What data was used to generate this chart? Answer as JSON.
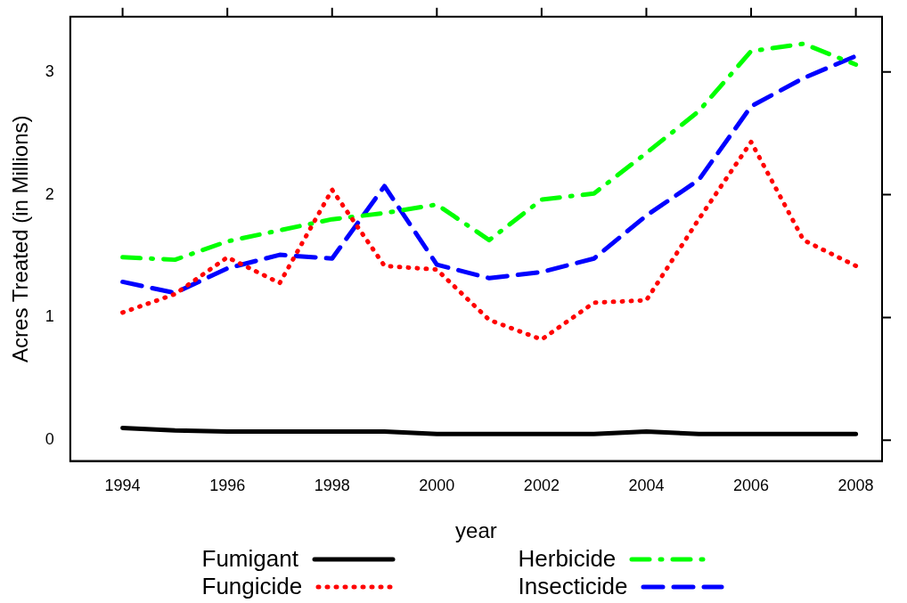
{
  "chart_data": {
    "type": "line",
    "xlabel": "year",
    "ylabel": "Acres Treated (in Millions)",
    "x": [
      1994,
      1995,
      1996,
      1997,
      1998,
      1999,
      2000,
      2001,
      2002,
      2003,
      2004,
      2005,
      2006,
      2007,
      2008
    ],
    "xlim": [
      1993,
      2008.5
    ],
    "xticks": [
      1994,
      1996,
      1998,
      2000,
      2002,
      2004,
      2006,
      2008
    ],
    "ylim": [
      -0.17,
      3.45
    ],
    "yticks": [
      0,
      1,
      2,
      3
    ],
    "grid": false,
    "legend": "bottom",
    "marker": "none",
    "series": [
      {
        "name": "Fumigant",
        "color": "#000000",
        "line_style": "solid",
        "values": [
          0.1,
          0.08,
          0.07,
          0.07,
          0.07,
          0.07,
          0.05,
          0.05,
          0.05,
          0.05,
          0.07,
          0.05,
          0.05,
          0.05,
          0.05
        ]
      },
      {
        "name": "Fungicide",
        "color": "#ff0000",
        "line_style": "dotted",
        "values": [
          1.04,
          1.19,
          1.49,
          1.28,
          2.04,
          1.42,
          1.39,
          0.98,
          0.82,
          1.12,
          1.14,
          1.8,
          2.43,
          1.63,
          1.42
        ]
      },
      {
        "name": "Herbicide",
        "color": "#00ff00",
        "line_style": "dashdot",
        "values": [
          1.49,
          1.47,
          1.62,
          1.71,
          1.8,
          1.85,
          1.92,
          1.63,
          1.96,
          2.01,
          2.34,
          2.68,
          3.17,
          3.23,
          3.06
        ]
      },
      {
        "name": "Insecticide",
        "color": "#0000ff",
        "line_style": "dashed",
        "values": [
          1.29,
          1.2,
          1.4,
          1.51,
          1.48,
          2.07,
          1.43,
          1.32,
          1.37,
          1.48,
          1.83,
          2.12,
          2.72,
          2.95,
          3.13
        ]
      }
    ]
  }
}
